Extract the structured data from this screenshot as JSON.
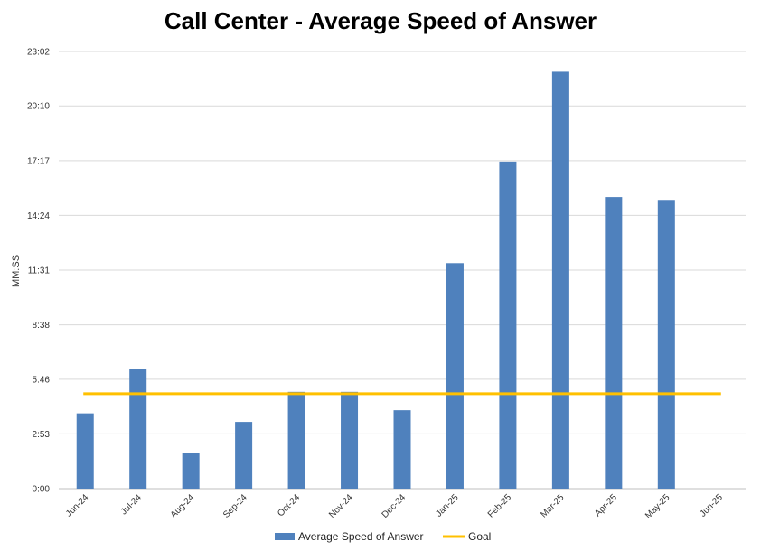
{
  "chart_data": {
    "type": "bar",
    "title": "Call Center - Average Speed of Answer",
    "ylabel": "MM:SS",
    "xlabel": "",
    "categories": [
      "Jun-24",
      "Jul-24",
      "Aug-24",
      "Sep-24",
      "Oct-24",
      "Nov-24",
      "Dec-24",
      "Jan-25",
      "Feb-25",
      "Mar-25",
      "Apr-25",
      "May-25",
      "Jun-25"
    ],
    "y_ticks": [
      "0:00",
      "2:53",
      "5:46",
      "8:38",
      "11:31",
      "14:24",
      "17:17",
      "20:10",
      "23:02"
    ],
    "y_tick_seconds": [
      0,
      173,
      346,
      518,
      691,
      864,
      1037,
      1210,
      1382
    ],
    "ylim_seconds": [
      0,
      1382
    ],
    "series": [
      {
        "name": "Average Speed of Answer",
        "type": "bar",
        "color": "#4F81BD",
        "values_seconds": [
          238,
          377,
          112,
          211,
          306,
          306,
          248,
          713,
          1034,
          1318,
          922,
          913,
          null
        ]
      },
      {
        "name": "Goal",
        "type": "line",
        "color": "#FFC000",
        "values_seconds": [
          300,
          300,
          300,
          300,
          300,
          300,
          300,
          300,
          300,
          300,
          300,
          300,
          300
        ]
      }
    ],
    "grid": true,
    "legend": "bottom"
  }
}
